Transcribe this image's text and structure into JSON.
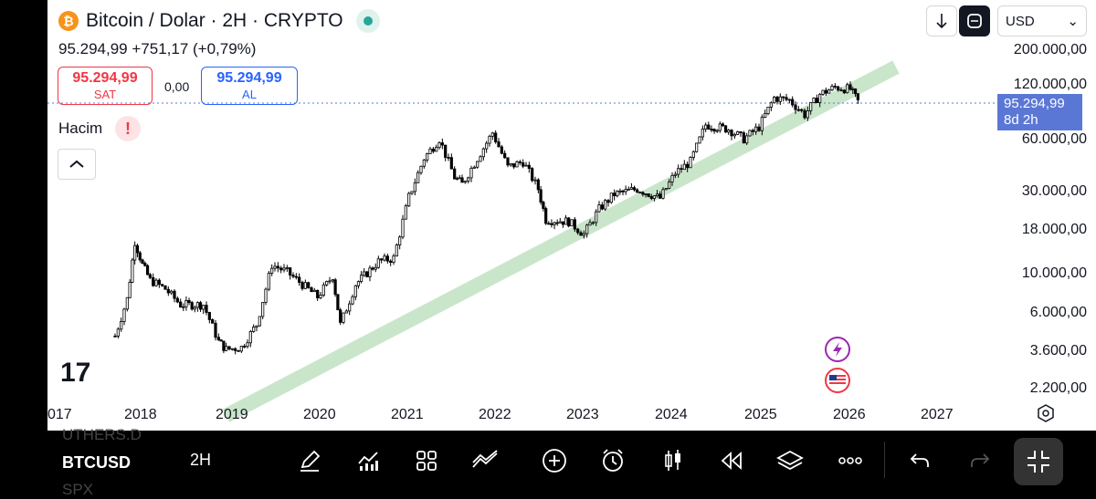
{
  "header": {
    "logo_glyph": "₿",
    "title": "Bitcoin / Dolar · 2H · CRYPTO",
    "price_summary": "95.294,99 +751,17 (+0,79%)"
  },
  "trade": {
    "sell_price": "95.294,99",
    "sell_label": "SAT",
    "spread": "0,00",
    "buy_price": "95.294,99",
    "buy_label": "AL"
  },
  "indicator": {
    "label": "Hacim",
    "warning_glyph": "!"
  },
  "toolbar": {
    "currency": "USD",
    "currency_caret": "⌄"
  },
  "y_axis": {
    "labels": [
      "200.000,00",
      "120.000,00",
      "60.000,00",
      "30.000,00",
      "18.000,00",
      "10.000,00",
      "6.000,00",
      "3.600,00",
      "2.200,00"
    ]
  },
  "price_tag": {
    "value": "95.294,99",
    "countdown": "8d 2h"
  },
  "x_axis": {
    "labels": [
      "017",
      "2018",
      "2019",
      "2020",
      "2021",
      "2022",
      "2023",
      "2024",
      "2025",
      "2026",
      "2027"
    ]
  },
  "bottom_bar": {
    "symbol": "BTCUSD",
    "interval": "2H",
    "ghost_above": "UTHERS.D",
    "ghost_below": "SPX"
  },
  "colors": {
    "accent_blue": "#2962ff",
    "sell_red": "#f23645",
    "trend_green": "#a5d6a7",
    "candle": "#000000",
    "price_tag_bg": "#5b77d6"
  },
  "chart_data": {
    "type": "candlestick",
    "scale": "log",
    "series_points": [
      [
        "2017-09",
        3800
      ],
      [
        "2017-11",
        7000
      ],
      [
        "2017-12",
        15000
      ],
      [
        "2018-01",
        11000
      ],
      [
        "2018-02",
        9000
      ],
      [
        "2018-04",
        8000
      ],
      [
        "2018-06",
        6500
      ],
      [
        "2018-09",
        6500
      ],
      [
        "2018-11",
        4000
      ],
      [
        "2018-12",
        3600
      ],
      [
        "2019-02",
        3700
      ],
      [
        "2019-04",
        5000
      ],
      [
        "2019-06",
        11000
      ],
      [
        "2019-08",
        10000
      ],
      [
        "2019-10",
        8500
      ],
      [
        "2019-12",
        7200
      ],
      [
        "2020-02",
        9500
      ],
      [
        "2020-03",
        5000
      ],
      [
        "2020-05",
        8500
      ],
      [
        "2020-08",
        11500
      ],
      [
        "2020-10",
        12000
      ],
      [
        "2020-12",
        27000
      ],
      [
        "2021-02",
        45000
      ],
      [
        "2021-04",
        58000
      ],
      [
        "2021-06",
        35000
      ],
      [
        "2021-07",
        32000
      ],
      [
        "2021-09",
        45000
      ],
      [
        "2021-11",
        63000
      ],
      [
        "2022-01",
        40000
      ],
      [
        "2022-03",
        43000
      ],
      [
        "2022-05",
        30000
      ],
      [
        "2022-06",
        20000
      ],
      [
        "2022-09",
        19500
      ],
      [
        "2022-11",
        16500
      ],
      [
        "2023-01",
        23000
      ],
      [
        "2023-03",
        28000
      ],
      [
        "2023-06",
        30000
      ],
      [
        "2023-09",
        26500
      ],
      [
        "2023-11",
        37000
      ],
      [
        "2024-01",
        43000
      ],
      [
        "2024-03",
        70000
      ],
      [
        "2024-06",
        66000
      ],
      [
        "2024-08",
        58000
      ],
      [
        "2024-10",
        68000
      ],
      [
        "2024-12",
        100000
      ],
      [
        "2025-02",
        97000
      ],
      [
        "2025-04",
        80000
      ],
      [
        "2025-06",
        105000
      ],
      [
        "2025-08",
        115000
      ],
      [
        "2025-10",
        112000
      ],
      [
        "2025-11",
        95294.99
      ]
    ],
    "trend_band": {
      "start": [
        "2018-12",
        1500
      ],
      "end": [
        "2026-04",
        150000
      ]
    },
    "last_price": 95294.99,
    "y_ticks": [
      200000,
      120000,
      60000,
      30000,
      18000,
      10000,
      6000,
      3600,
      2200
    ],
    "x_ticks": [
      "2018",
      "2019",
      "2020",
      "2021",
      "2022",
      "2023",
      "2024",
      "2025",
      "2026",
      "2027"
    ]
  }
}
